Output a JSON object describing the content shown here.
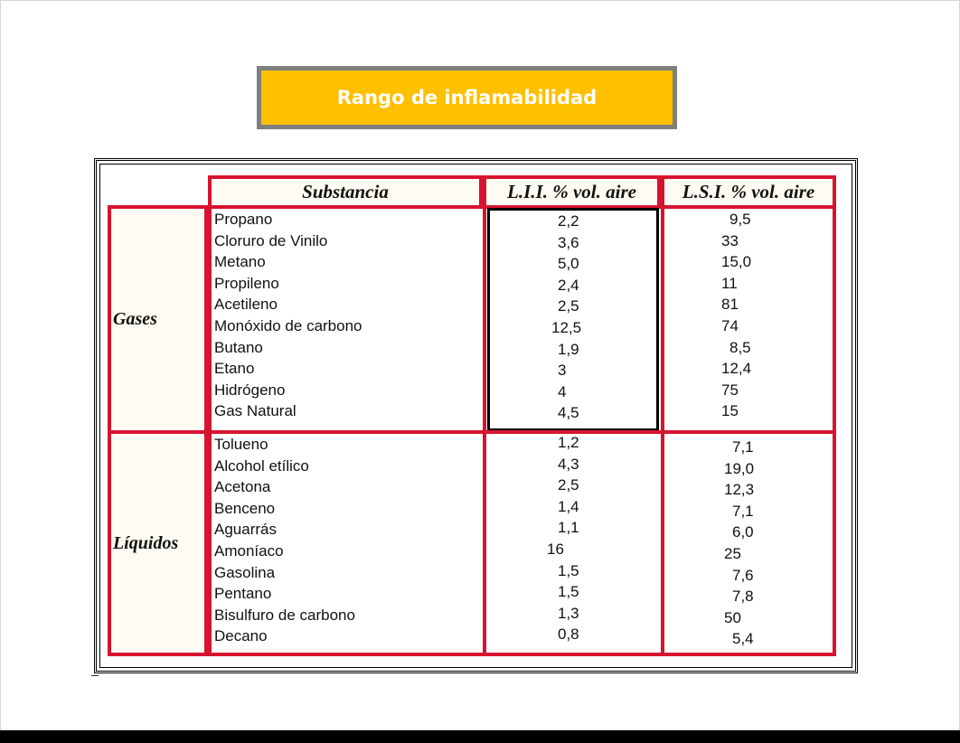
{
  "title": "Rango de inflamabilidad",
  "colors": {
    "title_bg": "#ffc000",
    "title_border": "#7f7f7f",
    "table_border": "#d71430"
  },
  "table": {
    "headers": {
      "substance": "Substancia",
      "lii": "L.I.I. % vol. aire",
      "lsi": "L.S.I. % vol. aire"
    },
    "groups": [
      {
        "label": "Gases",
        "rows": [
          {
            "name": "Propano",
            "lii": "2,2",
            "lsi": "9,5"
          },
          {
            "name": "Cloruro de Vinilo",
            "lii": "3,6",
            "lsi": "33"
          },
          {
            "name": "Metano",
            "lii": "5,0",
            "lsi": "15,0"
          },
          {
            "name": "Propileno",
            "lii": "2,4",
            "lsi": "11"
          },
          {
            "name": "Acetileno",
            "lii": "2,5",
            "lsi": "81"
          },
          {
            "name": "Monóxido de carbono",
            "lii": "12,5",
            "lsi": "74"
          },
          {
            "name": "Butano",
            "lii": "1,9",
            "lsi": "8,5"
          },
          {
            "name": "Etano",
            "lii": "3",
            "lsi": "12,4"
          },
          {
            "name": "Hidrógeno",
            "lii": "4",
            "lsi": "75"
          },
          {
            "name": "Gas Natural",
            "lii": "4,5",
            "lsi": "15"
          }
        ]
      },
      {
        "label": "Líquidos",
        "rows": [
          {
            "name": "Tolueno",
            "lii": "1,2",
            "lsi": "7,1"
          },
          {
            "name": "Alcohol etílico",
            "lii": "4,3",
            "lsi": "19,0"
          },
          {
            "name": "Acetona",
            "lii": "2,5",
            "lsi": "12,3"
          },
          {
            "name": "Benceno",
            "lii": "1,4",
            "lsi": "7,1"
          },
          {
            "name": "Aguarrás",
            "lii": "1,1",
            "lsi": "6,0"
          },
          {
            "name": "Amoníaco",
            "lii": "16",
            "lsi": "25"
          },
          {
            "name": "Gasolina",
            "lii": "1,5",
            "lsi": "7,6"
          },
          {
            "name": "Pentano",
            "lii": "1,5",
            "lsi": "7,8"
          },
          {
            "name": "Bisulfuro de carbono",
            "lii": "1,3",
            "lsi": "50"
          },
          {
            "name": "Decano",
            "lii": "0,8",
            "lsi": "5,4"
          }
        ]
      }
    ]
  }
}
